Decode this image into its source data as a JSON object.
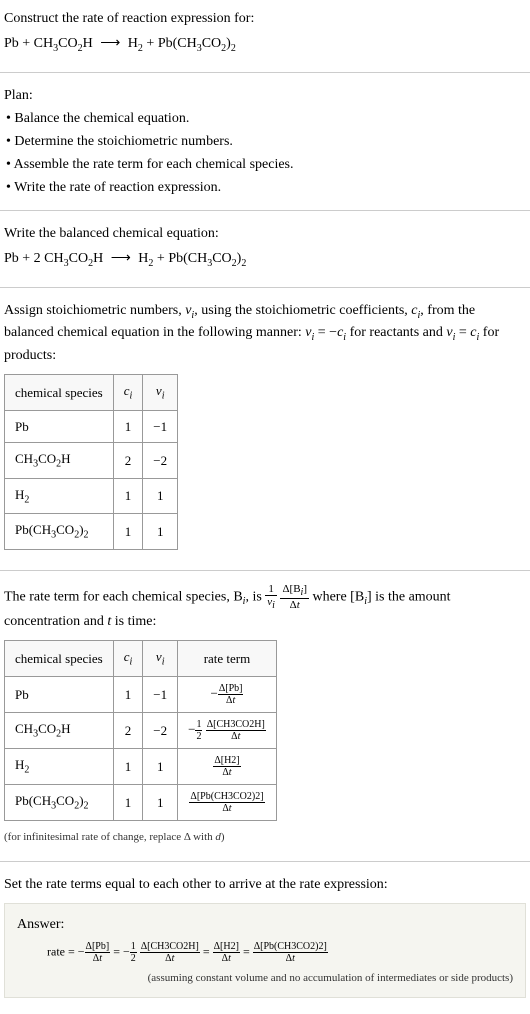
{
  "header": {
    "title": "Construct the rate of reaction expression for:",
    "equation": "Pb + CH₃CO₂H  ⟶  H₂ + Pb(CH₃CO₂)₂"
  },
  "plan": {
    "title": "Plan:",
    "bullets": [
      "• Balance the chemical equation.",
      "• Determine the stoichiometric numbers.",
      "• Assemble the rate term for each chemical species.",
      "• Write the rate of reaction expression."
    ]
  },
  "balanced": {
    "title": "Write the balanced chemical equation:",
    "equation": "Pb + 2 CH₃CO₂H  ⟶  H₂ + Pb(CH₃CO₂)₂"
  },
  "stoich_text": {
    "line1": "Assign stoichiometric numbers, νᵢ, using the stoichiometric coefficients, cᵢ, from",
    "line2": "the balanced chemical equation in the following manner: νᵢ = −cᵢ for reactants",
    "line3": "and νᵢ = cᵢ for products:"
  },
  "table1": {
    "headers": [
      "chemical species",
      "cᵢ",
      "νᵢ"
    ],
    "rows": [
      [
        "Pb",
        "1",
        "−1"
      ],
      [
        "CH₃CO₂H",
        "2",
        "−2"
      ],
      [
        "H₂",
        "1",
        "1"
      ],
      [
        "Pb(CH₃CO₂)₂",
        "1",
        "1"
      ]
    ]
  },
  "rate_term_text": {
    "prefix": "The rate term for each chemical species, Bᵢ, is ",
    "middle": " where [Bᵢ] is the amount",
    "line2": "concentration and t is time:"
  },
  "table2": {
    "headers": [
      "chemical species",
      "cᵢ",
      "νᵢ",
      "rate term"
    ],
    "rows": [
      {
        "species": "Pb",
        "c": "1",
        "v": "−1",
        "delta": "Δ[Pb]"
      },
      {
        "species": "CH₃CO₂H",
        "c": "2",
        "v": "−2",
        "delta": "Δ[CH3CO2H]"
      },
      {
        "species": "H₂",
        "c": "1",
        "v": "1",
        "delta": "Δ[H2]"
      },
      {
        "species": "Pb(CH₃CO₂)₂",
        "c": "1",
        "v": "1",
        "delta": "Δ[Pb(CH3CO2)2]"
      }
    ]
  },
  "infinitesimal_note": "(for infinitesimal rate of change, replace Δ with d)",
  "final_text": "Set the rate terms equal to each other to arrive at the rate expression:",
  "answer": {
    "label": "Answer:",
    "note": "(assuming constant volume and no accumulation of intermediates or side products)"
  },
  "colors": {
    "text": "#000000",
    "border": "#cccccc",
    "table_border": "#999999",
    "answer_bg": "#f5f5f0",
    "answer_border": "#e0e0d8",
    "note_color": "#333333"
  },
  "typography": {
    "body_fontsize": 14,
    "table_fontsize": 13,
    "small_fontsize": 11,
    "frac_fontsize": 11
  }
}
